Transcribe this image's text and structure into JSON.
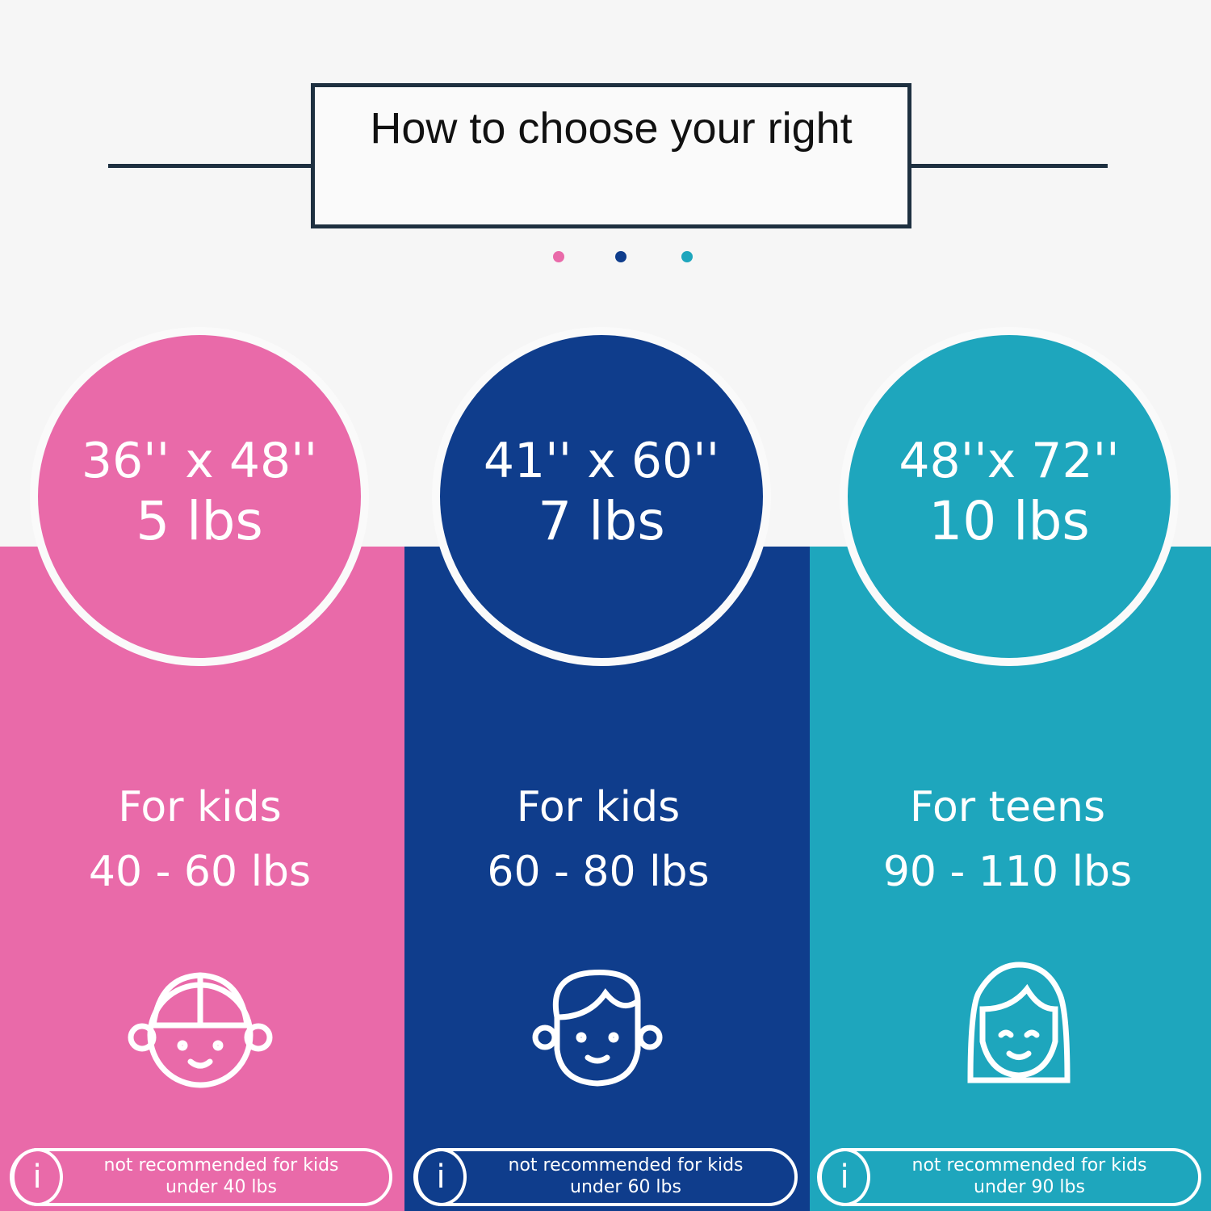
{
  "title": "How to choose your right",
  "colors": {
    "pink": "#e96aa9",
    "blue": "#0f3d8c",
    "teal": "#1ea6bd",
    "line": "#1e3040"
  },
  "options": [
    {
      "size": "36'' x 48''",
      "weight": "5 lbs",
      "for": "For kids",
      "range": "40 - 60 lbs",
      "icon": "boy-cap-face-icon",
      "note1": "not recommended for kids",
      "note2": "under 40 lbs"
    },
    {
      "size": "41'' x 60''",
      "weight": "7 lbs",
      "for": "For kids",
      "range": "60 - 80 lbs",
      "icon": "boy-face-icon",
      "note1": "not recommended for kids",
      "note2": "under 60 lbs"
    },
    {
      "size": "48''x 72''",
      "weight": "10 lbs",
      "for": "For teens",
      "range": "90 - 110 lbs",
      "icon": "girl-face-icon",
      "note1": "not recommended for kids",
      "note2": "under 90 lbs"
    }
  ]
}
